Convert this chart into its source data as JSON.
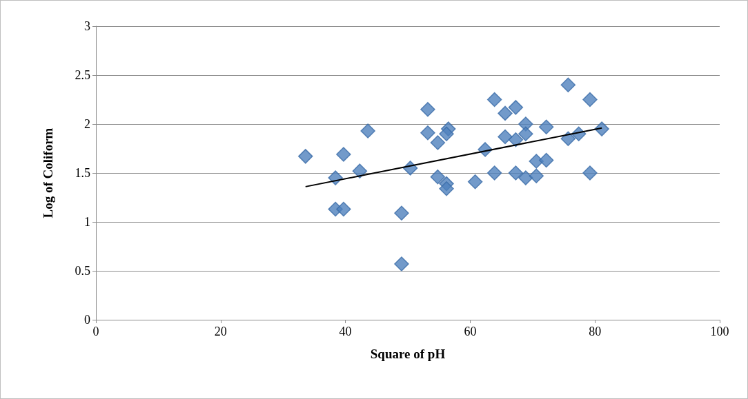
{
  "chart_data": {
    "type": "scatter",
    "xlabel": "Square of pH",
    "ylabel": "Log of Coliform",
    "xlim": [
      0,
      100
    ],
    "xticks": [
      0,
      20,
      40,
      60,
      80,
      100
    ],
    "ylim": [
      0,
      3
    ],
    "yticks": [
      0,
      0.5,
      1,
      1.5,
      2,
      2.5,
      3
    ],
    "grid": "y",
    "marker": "diamond",
    "series": [
      {
        "color": "#4f81bd",
        "x": [
          33.6,
          38.4,
          38.4,
          39.7,
          39.7,
          42.3,
          43.6,
          49.0,
          49.0,
          50.4,
          53.2,
          53.2,
          54.8,
          54.8,
          56.5,
          56.2,
          56.2,
          56.2,
          60.8,
          62.4,
          63.9,
          63.9,
          65.6,
          65.6,
          67.3,
          67.3,
          67.3,
          68.9,
          68.9,
          68.9,
          70.6,
          70.6,
          72.2,
          72.2,
          75.7,
          75.7,
          77.4,
          79.2,
          79.2,
          81.1
        ],
        "values": [
          1.67,
          1.45,
          1.13,
          1.13,
          1.69,
          1.52,
          1.93,
          1.09,
          0.57,
          1.55,
          2.15,
          1.91,
          1.81,
          1.46,
          1.95,
          1.9,
          1.39,
          1.34,
          1.41,
          1.74,
          2.25,
          1.5,
          2.11,
          1.87,
          2.17,
          1.84,
          1.5,
          2.0,
          1.9,
          1.45,
          1.62,
          1.47,
          1.97,
          1.63,
          2.4,
          1.85,
          1.9,
          2.25,
          1.5,
          1.95
        ]
      },
      {
        "type": "line",
        "color": "#000000",
        "x": [
          33.6,
          81.1
        ],
        "values": [
          1.36,
          1.96
        ],
        "marker": "none",
        "line_style": "solid"
      }
    ]
  }
}
